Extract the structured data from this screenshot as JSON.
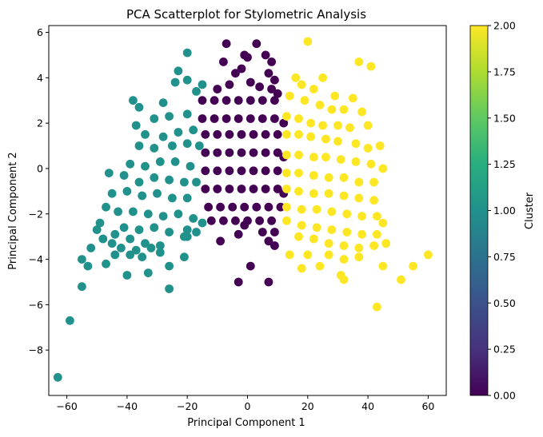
{
  "chart_data": {
    "type": "scatter",
    "title": "PCA Scatterplot for Stylometric Analysis",
    "xlabel": "Principal Component 1",
    "ylabel": "Principal Component 2",
    "xlim": [
      -66,
      66
    ],
    "ylim": [
      -10,
      6.3
    ],
    "xticks": [
      -60,
      -40,
      -20,
      0,
      20,
      40,
      60
    ],
    "yticks": [
      -8,
      -6,
      -4,
      -2,
      0,
      2,
      4,
      6
    ],
    "grid": false,
    "colorbar": {
      "label": "Cluster",
      "range": [
        0,
        2
      ],
      "ticks": [
        "0.00",
        "0.25",
        "0.50",
        "0.75",
        "1.00",
        "1.25",
        "1.50",
        "1.75",
        "2.00"
      ],
      "colormap": "viridis"
    },
    "series": [
      {
        "cluster": 0,
        "color": "#440154",
        "points": [
          [
            -7,
            5.5
          ],
          [
            3,
            5.5
          ],
          [
            -8,
            4.7
          ],
          [
            -1,
            5.0
          ],
          [
            0,
            4.9
          ],
          [
            6,
            5.0
          ],
          [
            8,
            4.7
          ],
          [
            -4,
            4.2
          ],
          [
            -2,
            4.4
          ],
          [
            7,
            4.2
          ],
          [
            9,
            3.9
          ],
          [
            -10,
            3.5
          ],
          [
            -6,
            3.7
          ],
          [
            1,
            3.8
          ],
          [
            4,
            3.6
          ],
          [
            8,
            3.5
          ],
          [
            10,
            3.3
          ],
          [
            -15,
            3.0
          ],
          [
            -11,
            3.0
          ],
          [
            -7,
            3.0
          ],
          [
            -3,
            3.0
          ],
          [
            1,
            3.0
          ],
          [
            5,
            3.0
          ],
          [
            9,
            3.0
          ],
          [
            -15,
            2.2
          ],
          [
            -11,
            2.2
          ],
          [
            -7,
            2.2
          ],
          [
            -3,
            2.2
          ],
          [
            1,
            2.2
          ],
          [
            5,
            2.2
          ],
          [
            9,
            2.2
          ],
          [
            12,
            2.0
          ],
          [
            -14,
            1.5
          ],
          [
            -10,
            1.5
          ],
          [
            -6,
            1.5
          ],
          [
            -2,
            1.5
          ],
          [
            2,
            1.5
          ],
          [
            6,
            1.5
          ],
          [
            10,
            1.5
          ],
          [
            -14,
            0.7
          ],
          [
            -10,
            0.7
          ],
          [
            -6,
            0.7
          ],
          [
            -2,
            0.7
          ],
          [
            2,
            0.7
          ],
          [
            6,
            0.7
          ],
          [
            10,
            0.7
          ],
          [
            12,
            0.5
          ],
          [
            -14,
            -0.1
          ],
          [
            -10,
            -0.1
          ],
          [
            -6,
            -0.1
          ],
          [
            -2,
            -0.1
          ],
          [
            2,
            -0.1
          ],
          [
            6,
            -0.1
          ],
          [
            10,
            -0.1
          ],
          [
            -14,
            -0.9
          ],
          [
            -10,
            -0.9
          ],
          [
            -6,
            -0.9
          ],
          [
            -2,
            -0.9
          ],
          [
            2,
            -0.9
          ],
          [
            6,
            -0.9
          ],
          [
            10,
            -0.9
          ],
          [
            12,
            -1.1
          ],
          [
            -13,
            -1.7
          ],
          [
            -9,
            -1.7
          ],
          [
            -5,
            -1.7
          ],
          [
            -1,
            -1.7
          ],
          [
            3,
            -1.7
          ],
          [
            7,
            -1.7
          ],
          [
            11,
            -1.7
          ],
          [
            -12,
            -2.3
          ],
          [
            -8,
            -2.3
          ],
          [
            -4,
            -2.3
          ],
          [
            0,
            -2.3
          ],
          [
            4,
            -2.3
          ],
          [
            8,
            -2.3
          ],
          [
            -1,
            -2.5
          ],
          [
            5,
            -2.8
          ],
          [
            9,
            -2.8
          ],
          [
            -3,
            -2.9
          ],
          [
            -9,
            -3.2
          ],
          [
            7,
            -3.2
          ],
          [
            9,
            -3.4
          ],
          [
            1,
            -4.3
          ],
          [
            -3,
            -5.0
          ],
          [
            7,
            -5.0
          ]
        ]
      },
      {
        "cluster": 1,
        "color": "#21918c",
        "points": [
          [
            -20,
            5.1
          ],
          [
            -23,
            4.3
          ],
          [
            -24,
            3.8
          ],
          [
            -20,
            3.9
          ],
          [
            -15,
            3.7
          ],
          [
            -17,
            3.4
          ],
          [
            -38,
            3.0
          ],
          [
            -36,
            2.7
          ],
          [
            -28,
            2.9
          ],
          [
            -31,
            2.2
          ],
          [
            -26,
            2.3
          ],
          [
            -20,
            2.4
          ],
          [
            -37,
            1.9
          ],
          [
            -34,
            1.5
          ],
          [
            -28,
            1.4
          ],
          [
            -23,
            1.6
          ],
          [
            -18,
            1.7
          ],
          [
            -36,
            1.0
          ],
          [
            -31,
            0.9
          ],
          [
            -25,
            1.0
          ],
          [
            -20,
            1.1
          ],
          [
            -16,
            1.0
          ],
          [
            -39,
            0.2
          ],
          [
            -34,
            0.1
          ],
          [
            -29,
            0.3
          ],
          [
            -24,
            0.3
          ],
          [
            -19,
            0.1
          ],
          [
            -46,
            -0.2
          ],
          [
            -41,
            -0.3
          ],
          [
            -36,
            -0.6
          ],
          [
            -31,
            -0.4
          ],
          [
            -26,
            -0.5
          ],
          [
            -21,
            -0.6
          ],
          [
            -17,
            -0.6
          ],
          [
            -45,
            -1.1
          ],
          [
            -40,
            -1.0
          ],
          [
            -35,
            -1.2
          ],
          [
            -30,
            -1.1
          ],
          [
            -25,
            -1.3
          ],
          [
            -20,
            -1.3
          ],
          [
            -47,
            -1.7
          ],
          [
            -43,
            -1.9
          ],
          [
            -38,
            -1.9
          ],
          [
            -33,
            -2.0
          ],
          [
            -28,
            -2.1
          ],
          [
            -23,
            -2.0
          ],
          [
            -18,
            -2.2
          ],
          [
            -49,
            -2.4
          ],
          [
            -41,
            -2.6
          ],
          [
            -36,
            -2.7
          ],
          [
            -31,
            -2.6
          ],
          [
            -26,
            -2.8
          ],
          [
            -20,
            -2.7
          ],
          [
            -15,
            -2.4
          ],
          [
            -44,
            -2.9
          ],
          [
            -39,
            -3.1
          ],
          [
            -34,
            -3.3
          ],
          [
            -29,
            -3.4
          ],
          [
            -21,
            -3.0
          ],
          [
            -17,
            -2.8
          ],
          [
            -50,
            -2.7
          ],
          [
            -48,
            -3.1
          ],
          [
            -45,
            -3.3
          ],
          [
            -42,
            -3.5
          ],
          [
            -37,
            -3.6
          ],
          [
            -32,
            -3.5
          ],
          [
            -52,
            -3.5
          ],
          [
            -44,
            -3.8
          ],
          [
            -39,
            -3.8
          ],
          [
            -35,
            -3.9
          ],
          [
            -29,
            -3.7
          ],
          [
            -20,
            -3.0
          ],
          [
            -55,
            -4.0
          ],
          [
            -53,
            -4.3
          ],
          [
            -47,
            -4.2
          ],
          [
            -40,
            -4.7
          ],
          [
            -33,
            -4.6
          ],
          [
            -26,
            -4.3
          ],
          [
            -21,
            -3.9
          ],
          [
            -55,
            -5.2
          ],
          [
            -26,
            -5.3
          ],
          [
            -59,
            -6.7
          ],
          [
            -63,
            -9.2
          ]
        ]
      },
      {
        "cluster": 2,
        "color": "#fde725",
        "points": [
          [
            20,
            5.6
          ],
          [
            37,
            4.7
          ],
          [
            41,
            4.5
          ],
          [
            16,
            4.0
          ],
          [
            25,
            4.0
          ],
          [
            18,
            3.7
          ],
          [
            22,
            3.5
          ],
          [
            29,
            3.2
          ],
          [
            35,
            3.1
          ],
          [
            14,
            3.2
          ],
          [
            19,
            3.0
          ],
          [
            24,
            2.8
          ],
          [
            28,
            2.6
          ],
          [
            32,
            2.6
          ],
          [
            38,
            2.5
          ],
          [
            13,
            2.3
          ],
          [
            17,
            2.2
          ],
          [
            21,
            2.0
          ],
          [
            25,
            1.9
          ],
          [
            30,
            1.9
          ],
          [
            34,
            1.8
          ],
          [
            40,
            1.9
          ],
          [
            13,
            1.5
          ],
          [
            17,
            1.5
          ],
          [
            21,
            1.4
          ],
          [
            26,
            1.3
          ],
          [
            30,
            1.2
          ],
          [
            36,
            1.1
          ],
          [
            40,
            0.9
          ],
          [
            44,
            1.0
          ],
          [
            13,
            0.6
          ],
          [
            17,
            0.6
          ],
          [
            22,
            0.5
          ],
          [
            26,
            0.5
          ],
          [
            31,
            0.4
          ],
          [
            36,
            0.3
          ],
          [
            41,
            0.2
          ],
          [
            45,
            0.0
          ],
          [
            13,
            -0.2
          ],
          [
            17,
            -0.2
          ],
          [
            22,
            -0.3
          ],
          [
            27,
            -0.4
          ],
          [
            32,
            -0.4
          ],
          [
            37,
            -0.6
          ],
          [
            42,
            -0.6
          ],
          [
            13,
            -0.9
          ],
          [
            17,
            -1.0
          ],
          [
            22,
            -1.1
          ],
          [
            27,
            -1.1
          ],
          [
            32,
            -1.2
          ],
          [
            37,
            -1.3
          ],
          [
            42,
            -1.4
          ],
          [
            13,
            -1.7
          ],
          [
            18,
            -1.8
          ],
          [
            23,
            -1.8
          ],
          [
            28,
            -1.9
          ],
          [
            33,
            -2.0
          ],
          [
            38,
            -2.1
          ],
          [
            43,
            -2.1
          ],
          [
            13,
            -2.3
          ],
          [
            18,
            -2.5
          ],
          [
            23,
            -2.6
          ],
          [
            28,
            -2.7
          ],
          [
            33,
            -2.8
          ],
          [
            38,
            -2.9
          ],
          [
            43,
            -2.9
          ],
          [
            45,
            -2.4
          ],
          [
            17,
            -3.0
          ],
          [
            22,
            -3.1
          ],
          [
            27,
            -3.3
          ],
          [
            32,
            -3.4
          ],
          [
            37,
            -3.5
          ],
          [
            42,
            -3.4
          ],
          [
            46,
            -3.3
          ],
          [
            14,
            -3.8
          ],
          [
            20,
            -3.8
          ],
          [
            27,
            -3.8
          ],
          [
            32,
            -4.0
          ],
          [
            37,
            -3.9
          ],
          [
            18,
            -4.4
          ],
          [
            24,
            -4.3
          ],
          [
            31,
            -4.7
          ],
          [
            32,
            -4.9
          ],
          [
            45,
            -4.3
          ],
          [
            51,
            -4.9
          ],
          [
            55,
            -4.3
          ],
          [
            60,
            -3.8
          ],
          [
            43,
            -6.1
          ]
        ]
      }
    ]
  }
}
